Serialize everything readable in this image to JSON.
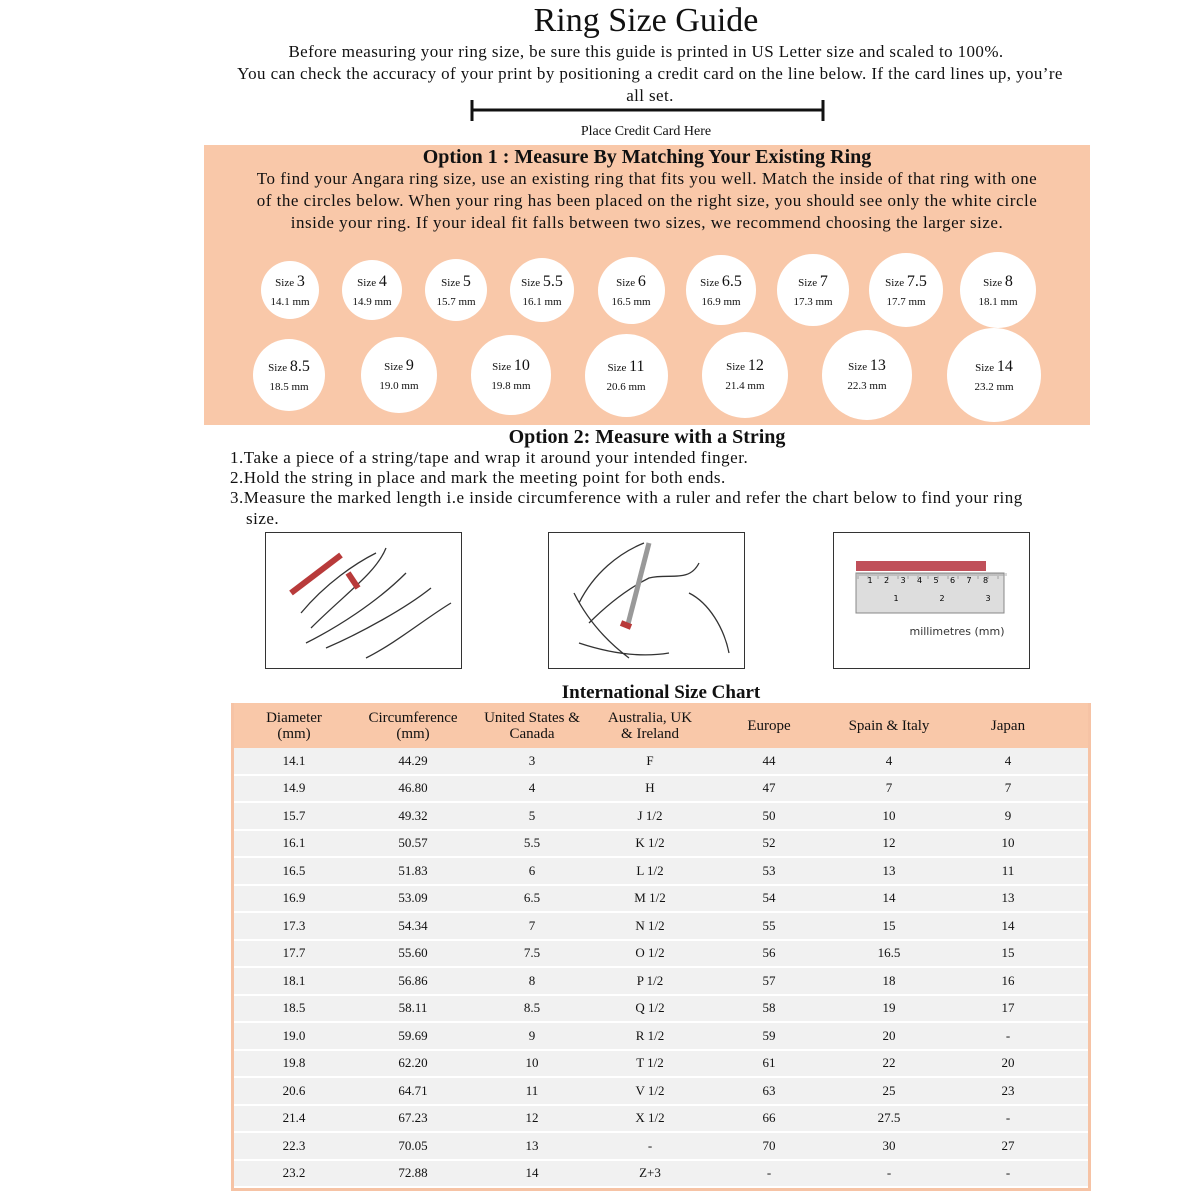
{
  "header": {
    "title": "Ring Size Guide",
    "line1": "Before measuring your ring size, be sure this guide is printed in US Letter size and scaled to 100%.",
    "line2": "You can check the accuracy of your print by positioning a credit card on the line below. If the card lines up, you’re all set.",
    "card_label": "Place Credit Card Here"
  },
  "option1": {
    "title": "Option 1 : Measure By Matching Your Existing Ring",
    "text": "To find your Angara ring size, use an existing ring that fits you well. Match the inside of that ring with one of the circles below. When your ring has been placed on the right size, you should see only the white circle inside your ring. If your ideal fit falls between two sizes, we recommend choosing the larger size.",
    "size_word": "Size",
    "rings": [
      {
        "size": "3",
        "mm": "14.1 mm"
      },
      {
        "size": "4",
        "mm": "14.9 mm"
      },
      {
        "size": "5",
        "mm": "15.7 mm"
      },
      {
        "size": "5.5",
        "mm": "16.1 mm"
      },
      {
        "size": "6",
        "mm": "16.5 mm"
      },
      {
        "size": "6.5",
        "mm": "16.9 mm"
      },
      {
        "size": "7",
        "mm": "17.3 mm"
      },
      {
        "size": "7.5",
        "mm": "17.7 mm"
      },
      {
        "size": "8",
        "mm": "18.1 mm"
      },
      {
        "size": "8.5",
        "mm": "18.5 mm"
      },
      {
        "size": "9",
        "mm": "19.0 mm"
      },
      {
        "size": "10",
        "mm": "19.8 mm"
      },
      {
        "size": "11",
        "mm": "20.6 mm"
      },
      {
        "size": "12",
        "mm": "21.4 mm"
      },
      {
        "size": "13",
        "mm": "22.3 mm"
      },
      {
        "size": "14",
        "mm": "23.2 mm"
      }
    ]
  },
  "option2": {
    "title": "Option 2: Measure with a String",
    "steps": [
      "1.Take a piece of a string/tape and wrap it around your intended finger.",
      "2.Hold the string in place and mark the meeting point for both ends.",
      "3.Measure the marked length i.e inside circumference with a ruler and refer the chart below to find your ring size."
    ],
    "ruler": {
      "top_labels": [
        "1",
        "2",
        "3",
        "4",
        "5",
        "6",
        "7",
        "8"
      ],
      "bottom_labels": [
        "1",
        "2",
        "3"
      ],
      "unit": "millimetres (mm)"
    }
  },
  "table": {
    "title": "International Size Chart",
    "headers": [
      "Diameter\n(mm)",
      "Circumference\n(mm)",
      "United States &\nCanada",
      "Australia, UK\n& Ireland",
      "Europe",
      "Spain & Italy",
      "Japan"
    ],
    "rows": [
      [
        "14.1",
        "44.29",
        "3",
        "F",
        "44",
        "4",
        "4"
      ],
      [
        "14.9",
        "46.80",
        "4",
        "H",
        "47",
        "7",
        "7"
      ],
      [
        "15.7",
        "49.32",
        "5",
        "J 1/2",
        "50",
        "10",
        "9"
      ],
      [
        "16.1",
        "50.57",
        "5.5",
        "K 1/2",
        "52",
        "12",
        "10"
      ],
      [
        "16.5",
        "51.83",
        "6",
        "L 1/2",
        "53",
        "13",
        "11"
      ],
      [
        "16.9",
        "53.09",
        "6.5",
        "M 1/2",
        "54",
        "14",
        "13"
      ],
      [
        "17.3",
        "54.34",
        "7",
        "N 1/2",
        "55",
        "15",
        "14"
      ],
      [
        "17.7",
        "55.60",
        "7.5",
        "O 1/2",
        "56",
        "16.5",
        "15"
      ],
      [
        "18.1",
        "56.86",
        "8",
        "P 1/2",
        "57",
        "18",
        "16"
      ],
      [
        "18.5",
        "58.11",
        "8.5",
        "Q 1/2",
        "58",
        "19",
        "17"
      ],
      [
        "19.0",
        "59.69",
        "9",
        "R 1/2",
        "59",
        "20",
        "-"
      ],
      [
        "19.8",
        "62.20",
        "10",
        "T 1/2",
        "61",
        "22",
        "20"
      ],
      [
        "20.6",
        "64.71",
        "11",
        "V 1/2",
        "63",
        "25",
        "23"
      ],
      [
        "21.4",
        "67.23",
        "12",
        "X 1/2",
        "66",
        "27.5",
        "-"
      ],
      [
        "22.3",
        "70.05",
        "13",
        "-",
        "70",
        "30",
        "27"
      ],
      [
        "23.2",
        "72.88",
        "14",
        "Z+3",
        "-",
        "-",
        "-"
      ]
    ]
  }
}
